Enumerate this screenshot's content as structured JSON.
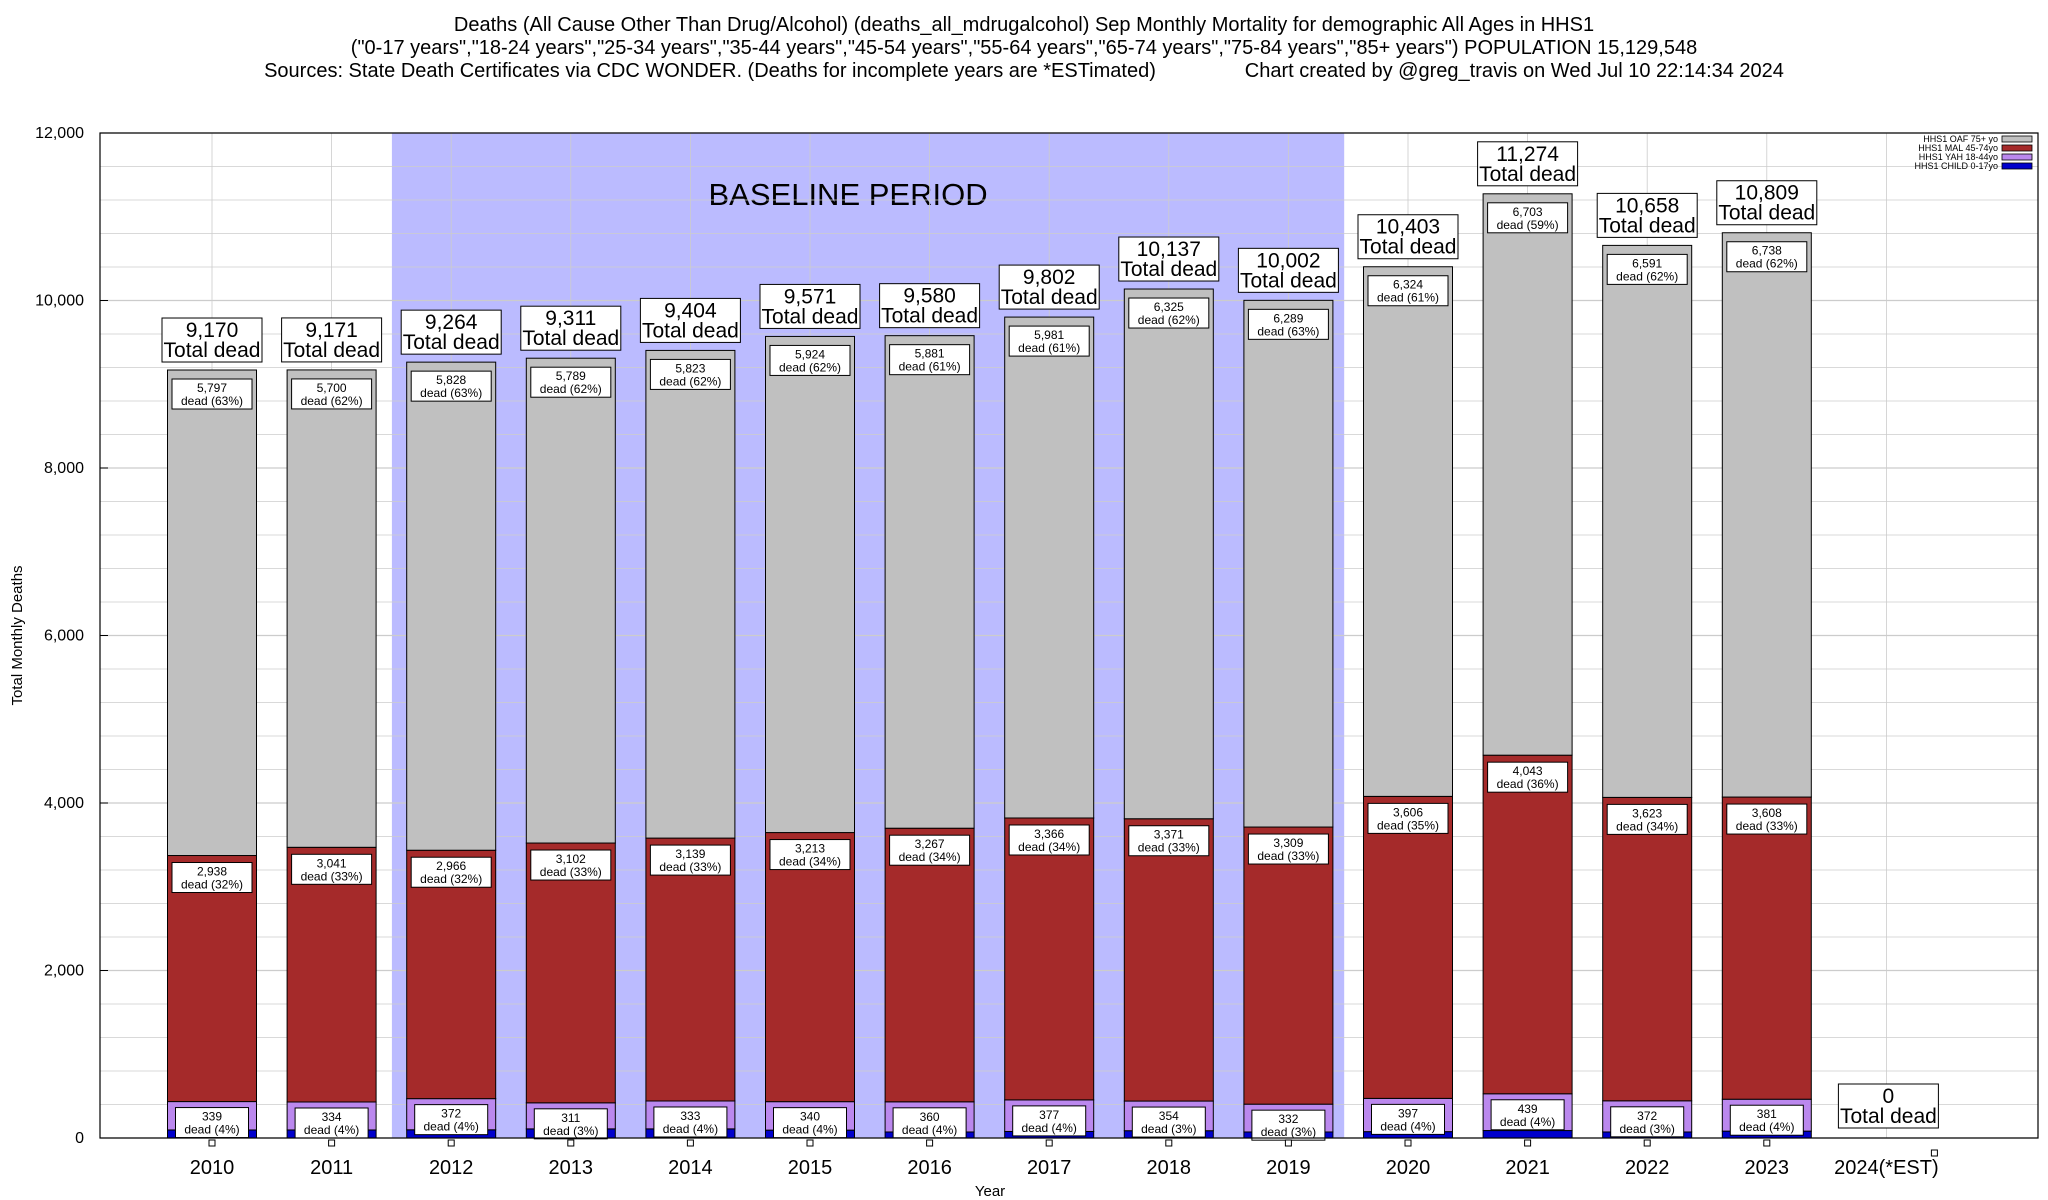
{
  "title_lines": [
    "Deaths (All Cause Other Than Drug/Alcohol) (deaths_all_mdrugalcohol) Sep Monthly Mortality for demographic All Ages in HHS1",
    "(\"0-17 years\",\"18-24 years\",\"25-34 years\",\"35-44 years\",\"45-54 years\",\"55-64 years\",\"65-74 years\",\"75-84 years\",\"85+ years\") POPULATION 15,129,548",
    "Sources: State Death Certificates via CDC WONDER. (Deaths for incomplete years are *ESTimated)                Chart created by @greg_travis on Wed Jul 10 22:14:34 2024"
  ],
  "chart_data": {
    "type": "bar",
    "stacked": true,
    "title": "Deaths (All Cause Other Than Drug/Alcohol) (deaths_all_mdrugalcohol) Sep Monthly Mortality for demographic All Ages in HHS1",
    "xlabel": "Year",
    "ylabel": "Total Monthly Deaths",
    "ylim": [
      0,
      12000
    ],
    "yticks": [
      0,
      2000,
      4000,
      6000,
      8000,
      10000,
      12000
    ],
    "ytick_labels": [
      "0",
      "2,000",
      "4,000",
      "6,000",
      "8,000",
      "10,000",
      "12,000"
    ],
    "grid": true,
    "legend_position": "top-right",
    "categories": [
      "2010",
      "2011",
      "2012",
      "2013",
      "2014",
      "2015",
      "2016",
      "2017",
      "2018",
      "2019",
      "2020",
      "2021",
      "2022",
      "2023",
      "2024(*EST)"
    ],
    "series": [
      {
        "name": "HHS1 CHILD 0-17yo",
        "color": "#0000cc",
        "values": [
          96,
          96,
          98,
          109,
          109,
          94,
          72,
          78,
          87,
          72,
          76,
          89,
          72,
          82,
          0
        ],
        "labels": [
          "",
          "",
          "",
          "",
          "",
          "",
          "",
          "",
          "",
          "",
          "",
          "",
          "",
          "",
          ""
        ]
      },
      {
        "name": "HHS1 YAH 18-44yo",
        "color": "#bb88ee",
        "values": [
          339,
          334,
          372,
          311,
          333,
          340,
          360,
          377,
          354,
          332,
          397,
          439,
          372,
          381,
          0
        ],
        "labels": [
          "339 dead (4%)",
          "334 dead (4%)",
          "372 dead (4%)",
          "311 dead (3%)",
          "333 dead (4%)",
          "340 dead (4%)",
          "360 dead (4%)",
          "377 dead (4%)",
          "354 dead (3%)",
          "332 dead (3%)",
          "397 dead (4%)",
          "439 dead (4%)",
          "372 dead (3%)",
          "381 dead (4%)",
          ""
        ]
      },
      {
        "name": "HHS1 MAL 45-74yo",
        "color": "#a52a2a",
        "values": [
          2938,
          3041,
          2966,
          3102,
          3139,
          3213,
          3267,
          3366,
          3371,
          3309,
          3606,
          4043,
          3623,
          3608,
          0
        ],
        "labels": [
          "2,938 dead (32%)",
          "3,041 dead (33%)",
          "2,966 dead (32%)",
          "3,102 dead (33%)",
          "3,139 dead (33%)",
          "3,213 dead (34%)",
          "3,267 dead (34%)",
          "3,366 dead (34%)",
          "3,371 dead (33%)",
          "3,309 dead (33%)",
          "3,606 dead (35%)",
          "4,043 dead (36%)",
          "3,623 dead (34%)",
          "3,608 dead (33%)",
          ""
        ]
      },
      {
        "name": "HHS1 OAF 75+ yo",
        "color": "#c0c0c0",
        "values": [
          5797,
          5700,
          5828,
          5789,
          5823,
          5924,
          5881,
          5981,
          6325,
          6289,
          6324,
          6703,
          6591,
          6738,
          0
        ],
        "labels": [
          "5,797 dead (63%)",
          "5,700 dead (62%)",
          "5,828 dead (63%)",
          "5,789 dead (62%)",
          "5,823 dead (62%)",
          "5,924 dead (62%)",
          "5,881 dead (61%)",
          "5,981 dead (61%)",
          "6,325 dead (62%)",
          "6,289 dead (63%)",
          "6,324 dead (61%)",
          "6,703 dead (59%)",
          "6,591 dead (62%)",
          "6,738 dead (62%)",
          ""
        ]
      }
    ],
    "totals": [
      9170,
      9171,
      9264,
      9311,
      9404,
      9571,
      9580,
      9802,
      10137,
      10002,
      10403,
      11274,
      10658,
      10809,
      0
    ],
    "total_labels": [
      "9,170",
      "9,171",
      "9,264",
      "9,311",
      "9,404",
      "9,571",
      "9,580",
      "9,802",
      "10,137",
      "10,002",
      "10,403",
      "11,274",
      "10,658",
      "10,809",
      "0"
    ],
    "total_suffix": "Total dead",
    "baseline": {
      "label": "BASELINE PERIOD",
      "from": "2012",
      "to": "2019",
      "color": "#bbbbff"
    },
    "colors": {
      "grid": "#cccccc",
      "box_border": "#000000"
    }
  }
}
